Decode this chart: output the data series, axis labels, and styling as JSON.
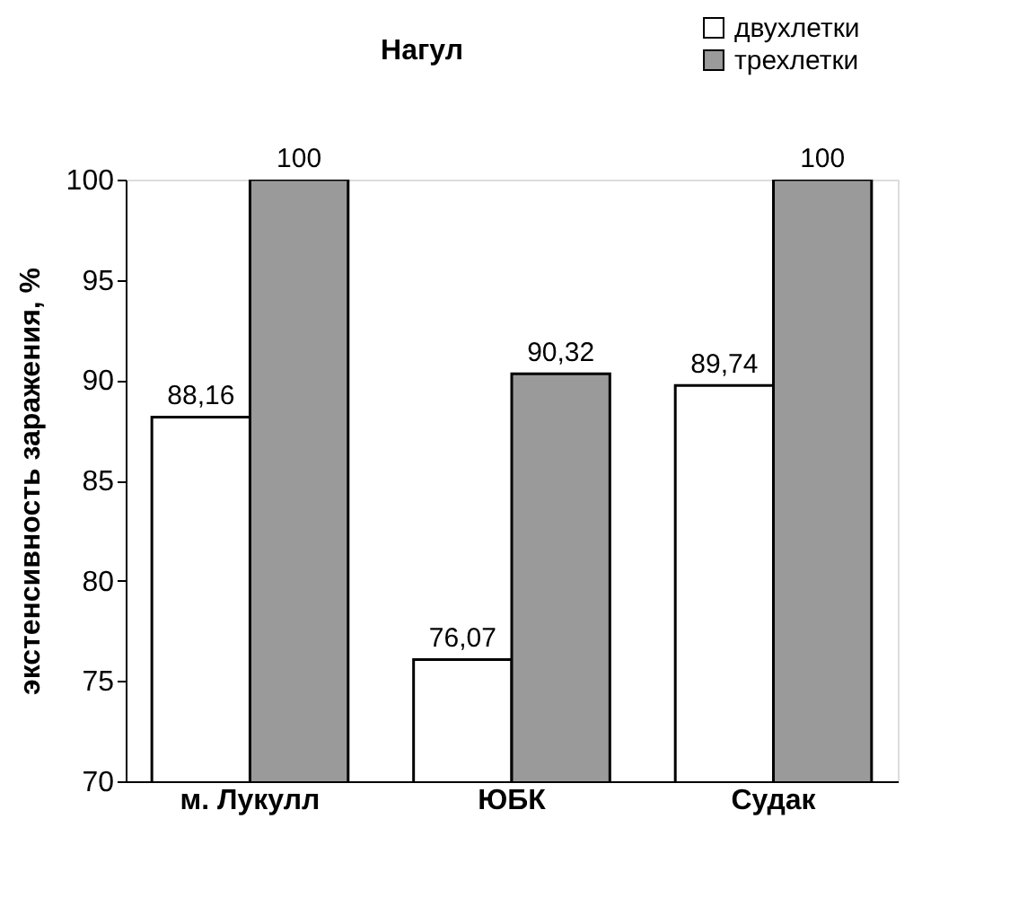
{
  "chart_data": {
    "type": "bar",
    "title": "Нагул",
    "ylabel": "экстенсивность заражения, %",
    "categories": [
      "м. Лукулл",
      "ЮБК",
      "Судак"
    ],
    "series": [
      {
        "name": "двухлетки",
        "color": "#ffffff",
        "values": [
          88.16,
          76.07,
          89.74
        ],
        "value_labels": [
          "88,16",
          "76,07",
          "89,74"
        ]
      },
      {
        "name": "трехлетки",
        "color": "#9a9a9a",
        "values": [
          100,
          90.32,
          100
        ],
        "value_labels": [
          "100",
          "90,32",
          "100"
        ]
      }
    ],
    "ylim": [
      70,
      100
    ],
    "yticks": [
      70,
      75,
      80,
      85,
      90,
      95,
      100
    ],
    "grid": false,
    "legend": "top right"
  }
}
